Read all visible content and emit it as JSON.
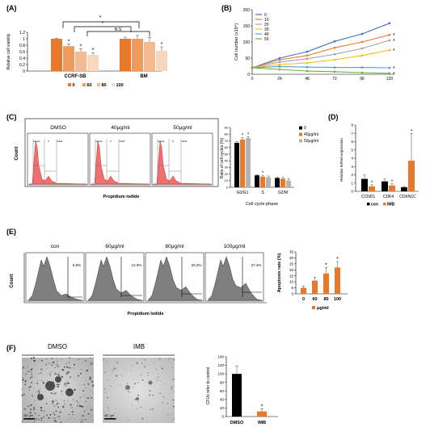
{
  "panels": {
    "A": {
      "label": "(A)",
      "sig_top": "*",
      "sig_mid": "*",
      "sig_ns": "N.S",
      "ylabel": "Relative cell viability",
      "yticks": [
        "0",
        "0.2",
        "0.4",
        "0.6",
        "0.8",
        "1",
        "1.2"
      ],
      "legend_items": [
        "0",
        "60",
        "80",
        "100"
      ],
      "colors": [
        "#e8782a",
        "#ee9b5e",
        "#f4bb93",
        "#f8d7bf"
      ]
    },
    "B": {
      "label": "(B)"
    },
    "C": {
      "label": "(C)",
      "flow_titles": [
        "DMSO",
        "40μg/ml",
        "50μg/ml"
      ],
      "gates": [
        "G0/G1",
        "S",
        "G2/M"
      ],
      "ylabel": "Count",
      "xlabel": "Propidium iodide",
      "legend_items": [
        "0",
        "40μg/ml",
        "50μg/ml"
      ],
      "colors": [
        "#000000",
        "#e8782a",
        "#b3b3b3"
      ]
    },
    "D": {
      "label": "(D)",
      "legend_items": [
        "con",
        "IMB"
      ],
      "colors": [
        "#000000",
        "#e8782a"
      ]
    },
    "E": {
      "label": "(E)",
      "flow_titles": [
        "con",
        "60μg/ml",
        "80μg/ml",
        "100μg/ml"
      ],
      "percents": [
        "5.5%",
        "12.9%",
        "20.4%",
        "27.4%"
      ],
      "ylabel": "Count",
      "xlabel": "Propidium Iodide",
      "legend_items": [
        "μg/ml"
      ],
      "colors": [
        "#e8782a"
      ]
    },
    "F": {
      "label": "(F)",
      "image_titles": [
        "DMSO",
        "IMB"
      ],
      "scale_bars": [
        "487 μm",
        "487 μm"
      ]
    }
  },
  "chart_data": [
    {
      "type": "bar",
      "panel": "A",
      "categories": [
        "CCRF-SB",
        "BM"
      ],
      "series": [
        {
          "name": "0",
          "values": [
            1.0,
            1.0
          ]
        },
        {
          "name": "60",
          "values": [
            0.77,
            1.0
          ]
        },
        {
          "name": "80",
          "values": [
            0.6,
            0.9
          ]
        },
        {
          "name": "100",
          "values": [
            0.5,
            0.63
          ]
        }
      ],
      "errors": [
        [
          0.02,
          0.05
        ],
        [
          0.07,
          0.1
        ],
        [
          0.09,
          0.14
        ],
        [
          0.07,
          0.12
        ]
      ],
      "ylim": [
        0,
        1.2
      ],
      "ylabel": "Relative cell viability",
      "legend": "bottom"
    },
    {
      "type": "line",
      "panel": "B",
      "x": [
        0,
        24,
        48,
        72,
        96,
        120
      ],
      "series": [
        {
          "name": "0",
          "values": [
            20,
            50,
            70,
            102,
            125,
            158
          ],
          "color": "#4472c4"
        },
        {
          "name": "10",
          "values": [
            20,
            45,
            58,
            82,
            100,
            122
          ],
          "color": "#ed7d31"
        },
        {
          "name": "20",
          "values": [
            20,
            38,
            48,
            62,
            80,
            105
          ],
          "color": "#a5a5a5"
        },
        {
          "name": "30",
          "values": [
            20,
            30,
            35,
            45,
            58,
            75
          ],
          "color": "#ffc000"
        },
        {
          "name": "40",
          "values": [
            20,
            24,
            22,
            21,
            21,
            20
          ],
          "color": "#5b9bd5"
        },
        {
          "name": "50",
          "values": [
            20,
            15,
            10,
            8,
            5,
            3
          ],
          "color": "#70ad47"
        }
      ],
      "ylim": [
        0,
        200
      ],
      "yticks": [
        0,
        50,
        100,
        150,
        200
      ],
      "ylabel": "Cell number (x10⁴)",
      "sig_marks": [
        "*",
        "*",
        "*",
        "*",
        "*"
      ],
      "legend": "top-left"
    },
    {
      "type": "bar",
      "panel": "C",
      "categories": [
        "G0/G1",
        "S",
        "G2/M"
      ],
      "series": [
        {
          "name": "0",
          "values": [
            67,
            18,
            14
          ]
        },
        {
          "name": "40μg/ml",
          "values": [
            72,
            16,
            13
          ]
        },
        {
          "name": "50μg/ml",
          "values": [
            74,
            15,
            10
          ]
        }
      ],
      "errors": [
        [
          2,
          1,
          1
        ],
        [
          3,
          2,
          2
        ],
        [
          2,
          2,
          3
        ]
      ],
      "ylim": [
        0,
        90
      ],
      "yticks": [
        0,
        10,
        20,
        30,
        40,
        50,
        60,
        70,
        80,
        90
      ],
      "ylabel": "Ratio of cell cycles (%)",
      "xlabel": "Cell cycle phase",
      "legend": "right"
    },
    {
      "type": "bar",
      "panel": "D",
      "categories": [
        "CCND1",
        "CDK4",
        "CDKN1C"
      ],
      "series": [
        {
          "name": "con",
          "values": [
            1.5,
            1.2,
            0.5
          ]
        },
        {
          "name": "IMB",
          "values": [
            0.6,
            0.7,
            3.7
          ]
        }
      ],
      "errors": [
        [
          0.5,
          0.3,
          0.1
        ],
        [
          0.2,
          0.2,
          3.3
        ]
      ],
      "ylim": [
        0,
        8
      ],
      "yticks": [
        0,
        1,
        2,
        3,
        4,
        5,
        6,
        7,
        8
      ],
      "ylabel": "Relative mRNA expression",
      "legend": "bottom"
    },
    {
      "type": "bar",
      "panel": "E",
      "categories": [
        "0",
        "60",
        "80",
        "100"
      ],
      "series": [
        {
          "name": "μg/ml",
          "values": [
            5,
            11,
            17,
            22
          ]
        }
      ],
      "errors": [
        [
          1.5,
          3,
          5,
          5
        ]
      ],
      "ylim": [
        0,
        35
      ],
      "yticks": [
        0,
        5,
        10,
        15,
        20,
        25,
        30,
        35
      ],
      "ylabel": "Apoptosis rate (%)",
      "legend": "bottom"
    },
    {
      "type": "bar",
      "panel": "F",
      "categories": [
        "DMSO",
        "IMB"
      ],
      "series": [
        {
          "name": "",
          "values": [
            100,
            12
          ]
        }
      ],
      "errors": [
        [
          18,
          6
        ]
      ],
      "ylim": [
        0,
        140
      ],
      "yticks": [
        0,
        20,
        40,
        60,
        80,
        100,
        120,
        140
      ],
      "ylabel": "CFUs refer to control"
    }
  ]
}
